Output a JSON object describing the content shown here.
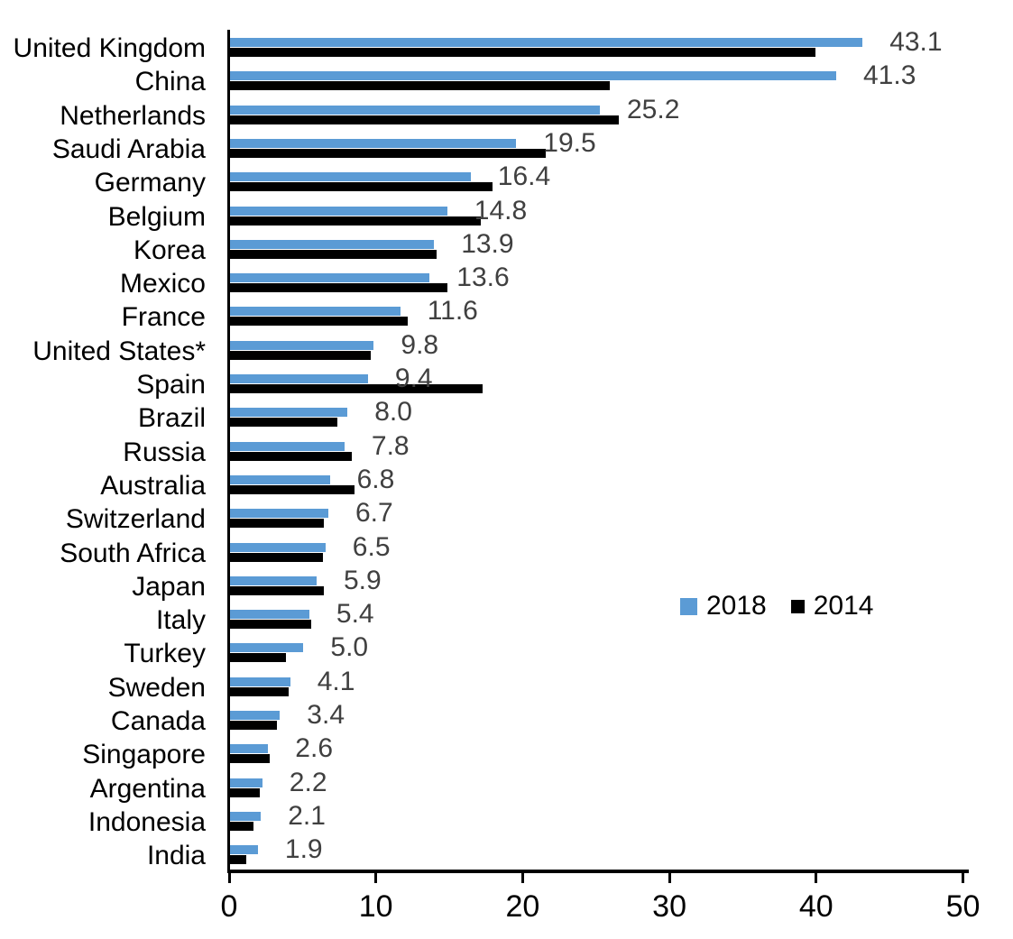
{
  "chart_data": {
    "type": "bar",
    "orientation": "horizontal",
    "title": "",
    "xlabel": "",
    "ylabel": "",
    "xlim": [
      0,
      50
    ],
    "x_ticks": [
      "0",
      "10",
      "20",
      "30",
      "40",
      "50"
    ],
    "grid": false,
    "legend_position": "center-right",
    "categories": [
      "United Kingdom",
      "China",
      "Netherlands",
      "Saudi Arabia",
      "Germany",
      "Belgium",
      "Korea",
      "Mexico",
      "France",
      "United States*",
      "Spain",
      "Brazil",
      "Russia",
      "Australia",
      "Switzerland",
      "South Africa",
      "Japan",
      "Italy",
      "Turkey",
      "Sweden",
      "Canada",
      "Singapore",
      "Argentina",
      "Indonesia",
      "India"
    ],
    "series": [
      {
        "name": "2018",
        "color": "#5B9BD5",
        "values": [
          43.1,
          41.3,
          25.2,
          19.5,
          16.4,
          14.8,
          13.9,
          13.6,
          11.6,
          9.8,
          9.4,
          8.0,
          7.8,
          6.8,
          6.7,
          6.5,
          5.9,
          5.4,
          5.0,
          4.1,
          3.4,
          2.6,
          2.2,
          2.1,
          1.9
        ]
      },
      {
        "name": "2014",
        "color": "#000000",
        "values": [
          39.9,
          25.9,
          26.5,
          21.5,
          17.9,
          17.1,
          14.1,
          14.8,
          12.1,
          9.6,
          17.2,
          7.3,
          8.3,
          8.5,
          6.4,
          6.3,
          6.4,
          5.5,
          3.8,
          4.0,
          3.2,
          2.7,
          2.0,
          1.6,
          1.1
        ]
      }
    ],
    "value_labels": [
      "43.1",
      "41.3",
      "25.2",
      "19.5",
      "16.4",
      "14.8",
      "13.9",
      "13.6",
      "11.6",
      "9.8",
      "9.4",
      "8.0",
      "7.8",
      "6.8",
      "6.7",
      "6.5",
      "5.9",
      "5.4",
      "5.0",
      "4.1",
      "3.4",
      "2.6",
      "2.2",
      "2.1",
      "1.9"
    ],
    "value_labels_refer_to": "2018"
  },
  "legend": {
    "items": [
      {
        "label": "2018",
        "color": "#5B9BD5"
      },
      {
        "label": "2014",
        "color": "#000000"
      }
    ]
  },
  "colors": {
    "bar_2018": "#5B9BD5",
    "bar_2014": "#000000",
    "axis": "#000000",
    "value_label": "#404040",
    "category_label": "#000000",
    "tick_label": "#000000",
    "background": "#FFFFFF"
  }
}
